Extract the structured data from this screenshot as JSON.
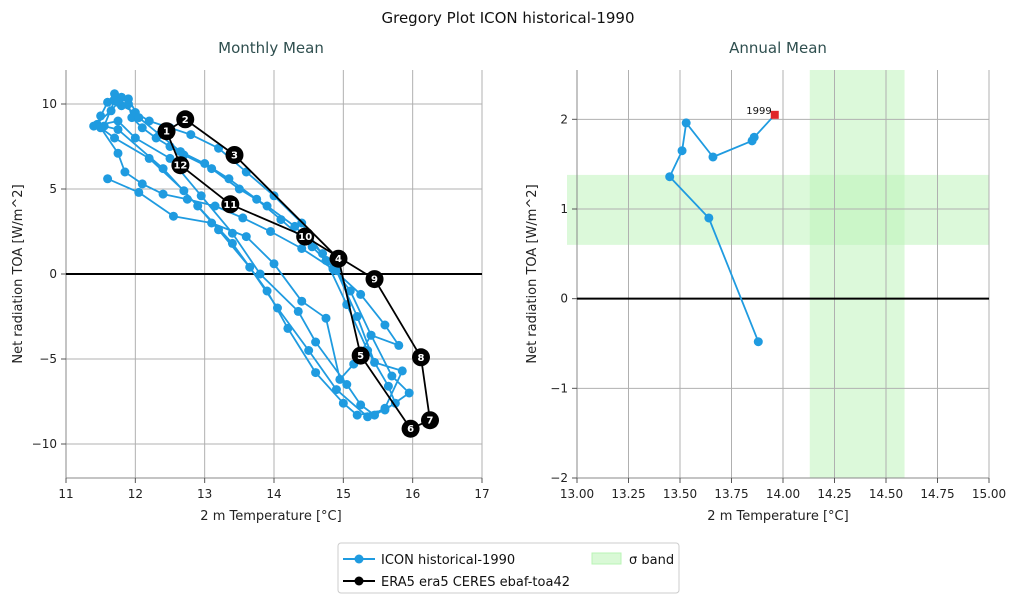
{
  "figure": {
    "title": "Gregory Plot ICON historical-1990",
    "colors": {
      "icon": "#1f9be0",
      "era5": "#000000",
      "band_fill": "#b9f4b5",
      "highlight": "#e0262a"
    }
  },
  "legend": {
    "items": [
      {
        "label": "ICON historical-1990",
        "marker": "line-dot",
        "color": "#1f9be0"
      },
      {
        "label": "ERA5 era5 CERES ebaf-toa42",
        "marker": "line-dot",
        "color": "#000000"
      },
      {
        "label": "σ band",
        "marker": "patch",
        "color": "#b9f4b5"
      }
    ]
  },
  "chart_data": [
    {
      "type": "line",
      "title": "Monthly Mean",
      "xlabel": "2 m Temperature [°C]",
      "ylabel": "Net radiation TOA [W/m^2]",
      "xlim": [
        11,
        17
      ],
      "ylim": [
        -12,
        12
      ],
      "xticks": [
        11,
        12,
        13,
        14,
        15,
        16,
        17
      ],
      "yticks": [
        -10,
        -5,
        0,
        5,
        10
      ],
      "grid": true,
      "zero_line": 0,
      "series": [
        {
          "name": "ICON historical-1990",
          "color": "#1f9be0",
          "x": [
            11.45,
            11.5,
            11.6,
            11.7,
            11.8,
            11.9,
            11.95,
            12.1,
            12.3,
            12.5,
            12.7,
            13.1,
            13.5,
            13.9,
            14.3,
            14.7,
            15.1,
            15.4,
            15.7,
            15.95,
            15.6,
            15.2,
            15.0,
            14.6,
            14.2,
            13.9,
            13.4,
            12.9,
            12.4,
            11.75,
            11.55,
            11.7,
            11.8,
            12.0,
            12.2,
            12.5,
            12.8,
            13.2,
            13.6,
            14.0,
            14.4,
            14.75,
            15.05,
            15.35,
            15.65,
            15.75,
            15.45,
            15.25,
            15.05,
            14.6,
            14.35,
            13.8,
            13.4,
            12.95,
            12.5,
            12.0,
            11.75,
            11.4,
            11.65,
            11.75,
            11.9,
            12.05,
            12.35,
            12.65,
            13.0,
            13.35,
            13.75,
            14.1,
            14.55,
            14.9,
            15.2,
            15.45,
            15.85,
            15.6,
            15.35,
            14.9,
            14.5,
            14.05,
            13.65,
            13.2,
            12.7,
            12.2,
            11.7,
            11.5,
            11.75,
            11.85,
            12.1,
            12.4,
            12.75,
            13.15,
            13.55,
            13.95,
            14.4,
            14.85,
            15.25,
            15.6,
            15.8,
            15.4,
            15.15,
            14.95,
            14.75,
            14.4,
            14.0,
            13.6,
            13.1,
            12.55,
            12.05,
            11.6
          ],
          "y": [
            8.8,
            9.3,
            10.1,
            10.6,
            10.4,
            10.0,
            9.2,
            8.6,
            8.0,
            7.5,
            7.0,
            6.2,
            5.0,
            4.0,
            2.8,
            1.2,
            -1.0,
            -3.6,
            -6.0,
            -7.0,
            -8.0,
            -8.3,
            -7.6,
            -5.8,
            -3.2,
            -1.0,
            1.8,
            4.0,
            6.2,
            8.5,
            8.7,
            10.2,
            9.9,
            9.5,
            9.0,
            8.6,
            8.2,
            7.4,
            6.0,
            4.6,
            3.0,
            0.8,
            -1.8,
            -4.5,
            -6.6,
            -7.6,
            -8.3,
            -7.7,
            -6.5,
            -4.0,
            -2.2,
            0.0,
            2.4,
            4.6,
            6.8,
            8.0,
            9.0,
            8.7,
            9.6,
            10.1,
            10.3,
            9.2,
            8.2,
            7.2,
            6.5,
            5.6,
            4.4,
            3.2,
            1.6,
            0.2,
            -2.5,
            -5.2,
            -5.7,
            -7.9,
            -8.4,
            -6.8,
            -4.5,
            -2.0,
            0.4,
            2.6,
            4.9,
            6.8,
            8.0,
            8.6,
            7.1,
            6.0,
            5.3,
            4.7,
            4.4,
            4.0,
            3.3,
            2.5,
            1.5,
            0.3,
            -1.2,
            -3.0,
            -4.2,
            -3.6,
            -5.3,
            -6.2,
            -2.6,
            -1.6,
            0.6,
            2.2,
            3.0,
            3.4,
            4.8,
            5.6
          ]
        },
        {
          "name": "ERA5 era5 CERES ebaf-toa42",
          "color": "#000000",
          "x": [
            12.45,
            12.72,
            13.43,
            14.93,
            15.25,
            15.97,
            16.25,
            16.12,
            15.45,
            14.45,
            13.37,
            12.65
          ],
          "y": [
            8.4,
            9.1,
            7.0,
            0.9,
            -4.8,
            -9.1,
            -8.6,
            -4.9,
            -0.3,
            2.2,
            4.1,
            6.4
          ],
          "labels": [
            "1",
            "2",
            "3",
            "4",
            "5",
            "6",
            "7",
            "8",
            "9",
            "10",
            "11",
            "12"
          ]
        }
      ]
    },
    {
      "type": "line",
      "title": "Annual Mean",
      "xlabel": "2 m Temperature [°C]",
      "ylabel": "Net radiation TOA [W/m^2]",
      "xlim": [
        13.0,
        15.0
      ],
      "ylim": [
        -2,
        2.55
      ],
      "xticks": [
        13.0,
        13.25,
        13.5,
        13.75,
        14.0,
        14.25,
        14.5,
        14.75,
        15.0
      ],
      "xtick_labels": [
        "13.00",
        "13.25",
        "13.50",
        "13.75",
        "14.00",
        "14.25",
        "14.50",
        "14.75",
        "15.00"
      ],
      "yticks": [
        -2,
        -1,
        0,
        1,
        2
      ],
      "grid": true,
      "zero_line": 0,
      "sigma_band": {
        "x": [
          14.13,
          14.59
        ],
        "y": [
          0.6,
          1.38
        ]
      },
      "annotation": {
        "text": "1999",
        "x": 13.96,
        "y": 2.05
      },
      "series": [
        {
          "name": "ICON historical-1990",
          "color": "#1f9be0",
          "x": [
            13.88,
            13.64,
            13.45,
            13.51,
            13.53,
            13.66,
            13.85,
            13.86,
            13.96
          ],
          "y": [
            -0.48,
            0.9,
            1.36,
            1.65,
            1.96,
            1.58,
            1.76,
            1.8,
            2.05
          ]
        }
      ]
    }
  ]
}
